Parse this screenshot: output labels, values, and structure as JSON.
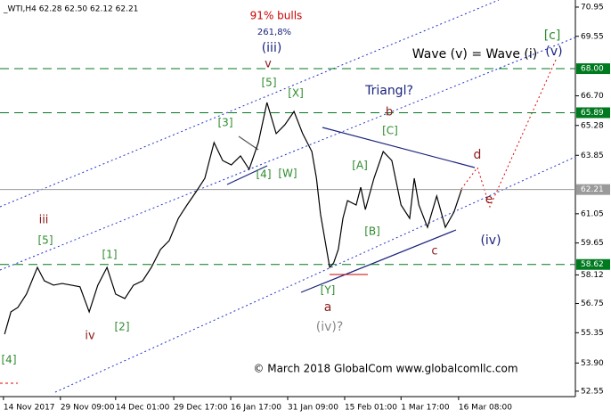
{
  "chart_data": {
    "type": "line",
    "header": "_WTI,H4  62.28 62.50 62.12 62.21",
    "xlim": [
      0,
      100
    ],
    "ylim": [
      52.29,
      71.29
    ],
    "xticks": [
      {
        "value": 0.6,
        "label": "14 Nov 2017"
      },
      {
        "value": 10.5,
        "label": "29 Nov 09:00"
      },
      {
        "value": 20.1,
        "label": "14 Dec 01:00"
      },
      {
        "value": 30.2,
        "label": "29 Dec 17:00"
      },
      {
        "value": 40.1,
        "label": "16 Jan 17:00"
      },
      {
        "value": 50,
        "label": "31 Jan 09:00"
      },
      {
        "value": 59.9,
        "label": "15 Feb 01:00"
      },
      {
        "value": 69.7,
        "label": "1 Mar 17:00"
      },
      {
        "value": 79.7,
        "label": "16 Mar 08:00"
      }
    ],
    "yticks": [
      70.95,
      69.55,
      {
        "value": 66.7,
        "label": "66.70"
      },
      65.28,
      63.85,
      61.05,
      59.65,
      58.12,
      56.75,
      55.35,
      {
        "value": 53.9,
        "label": "53.90"
      },
      52.55
    ],
    "levels": [
      {
        "value": 68,
        "label": "68.00",
        "color": "#007a1f"
      },
      {
        "value": 65.89,
        "label": "65.89",
        "color": "#007a1f"
      },
      {
        "value": 62.21,
        "label": "62.21",
        "color": "#9a9a9a"
      },
      {
        "value": 58.62,
        "label": "58.62",
        "color": "#007a1f"
      }
    ],
    "series": [
      {
        "color": "#000000",
        "x": [
          0.8,
          1.9,
          3.1,
          4.6,
          6.5,
          7.7,
          9.3,
          10.8,
          12.4,
          13.9,
          15.5,
          17,
          18.6,
          20.1,
          21.7,
          23.2,
          24.8,
          26.3,
          27.9,
          29.4,
          31,
          32.5,
          34.1,
          35.6,
          37.2,
          38.7,
          40.2,
          41.8,
          43.3,
          44.9,
          46.4,
          48,
          49.5,
          51.1,
          52.6,
          54.2,
          55,
          55.7,
          56.5,
          57.3,
          58,
          58.8,
          59.6,
          60.4,
          61.9,
          62.7,
          63.5,
          65,
          66.6,
          68.1,
          69.7,
          71.2,
          72,
          72.8,
          74.3,
          75.9,
          77.4,
          78.9,
          80.2
        ],
        "values": [
          55.28,
          56.35,
          56.56,
          57.2,
          58.48,
          57.84,
          57.63,
          57.71,
          57.63,
          57.55,
          56.35,
          57.63,
          58.48,
          57.2,
          56.99,
          57.63,
          57.84,
          58.48,
          59.34,
          59.76,
          60.83,
          61.47,
          62.11,
          62.75,
          64.46,
          63.6,
          63.39,
          63.82,
          63.18,
          64.46,
          66.38,
          64.89,
          65.31,
          65.95,
          64.89,
          64.03,
          62.75,
          61.04,
          59.76,
          58.48,
          58.7,
          59.34,
          60.83,
          61.68,
          61.47,
          62.32,
          61.25,
          62.75,
          64.03,
          63.6,
          61.47,
          60.83,
          62.75,
          61.47,
          60.4,
          61.9,
          60.4,
          61.13,
          62.2
        ]
      }
    ],
    "annotations": [
      "91% bulls",
      "261,8%",
      "(iii)",
      "v",
      "[5]",
      "[X]",
      "[3]",
      "[4]",
      "[W]",
      "Triangl?",
      "b",
      "[C]",
      "[A]",
      "[B]",
      "c",
      "d",
      "e",
      "(iv)",
      "Wave (v) = Wave (i)",
      "[c]",
      "(v)",
      "[Y]",
      "a",
      "(iv)?",
      "iii",
      "[5]",
      "[1]",
      "[2]",
      "iv",
      "[4]",
      "© March 2018 GlobalCom www.globalcomllc.com"
    ]
  }
}
